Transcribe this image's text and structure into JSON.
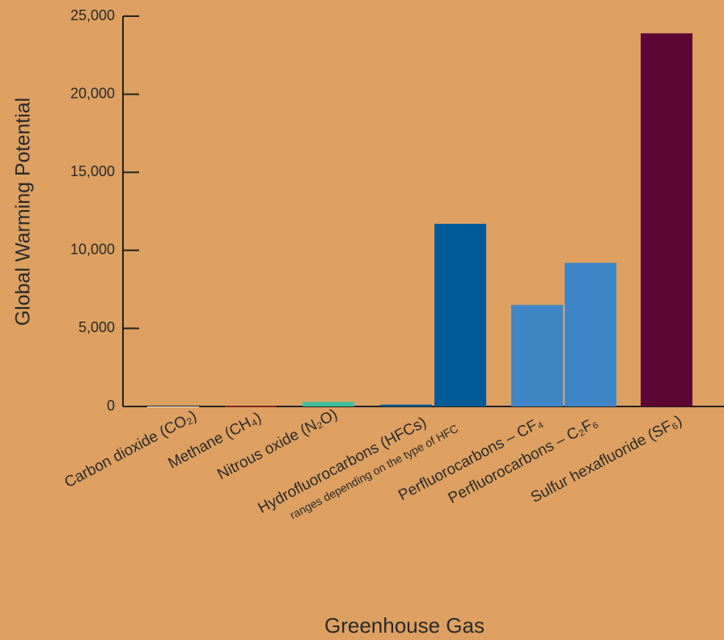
{
  "chart_data": {
    "type": "bar",
    "y_label": "Global Warming Potential",
    "x_label": "Greenhouse Gas",
    "categories": [
      "Carbon dioxide (CO₂)",
      "Methane (CH₄)",
      "Nitrous oxide (N₂O)",
      "Hydrofluorocarbons (HFCs)",
      "Perfluorocarbons – CF₄",
      "Perfluorocarbons – C₂F₆",
      "Sulfur hexafluoride (SF₆)"
    ],
    "category_notes": [
      null,
      null,
      null,
      "ranges depending on the type of HFC",
      null,
      null,
      null
    ],
    "values": [
      1,
      23,
      296,
      [
        120,
        11700
      ],
      6500,
      9200,
      23900
    ],
    "colors": [
      "#f3efe8",
      "#d5322b",
      "#3fbf9b",
      "#005a96",
      "#3f86c6",
      "#3f86c6",
      "#5e0633"
    ],
    "ylim": [
      0,
      25000
    ],
    "yticks": [
      0,
      {
        "value": 5000,
        "label": "5,000"
      },
      {
        "value": 10000,
        "label": "10,000"
      },
      {
        "value": 15000,
        "label": "15,000"
      },
      {
        "value": 20000,
        "label": "20,000"
      },
      {
        "value": 25000,
        "label": "25,000"
      }
    ]
  }
}
